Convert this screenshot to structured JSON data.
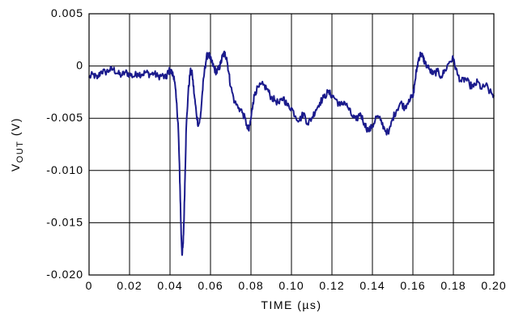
{
  "chart_data": {
    "type": "line",
    "xlabel": "TIME (µs)",
    "ylabel": {
      "main": "V",
      "sub": "OUT",
      "unit": " (V)"
    },
    "xlim": [
      0,
      0.2
    ],
    "ylim": [
      -0.02,
      0.005
    ],
    "x_ticks": [
      {
        "value": 0,
        "label": "0"
      },
      {
        "value": 0.02,
        "label": "0.02"
      },
      {
        "value": 0.04,
        "label": "0.04"
      },
      {
        "value": 0.06,
        "label": "0.06"
      },
      {
        "value": 0.08,
        "label": "0.08"
      },
      {
        "value": 0.1,
        "label": "0.10"
      },
      {
        "value": 0.12,
        "label": "0.12"
      },
      {
        "value": 0.14,
        "label": "0.14"
      },
      {
        "value": 0.16,
        "label": "0.16"
      },
      {
        "value": 0.18,
        "label": "0.18"
      },
      {
        "value": 0.2,
        "label": "0.20"
      }
    ],
    "y_ticks": [
      {
        "value": 0.005,
        "label": "0.005"
      },
      {
        "value": 0,
        "label": "0"
      },
      {
        "value": -0.005,
        "label": "-0.005"
      },
      {
        "value": -0.01,
        "label": "-0.010"
      },
      {
        "value": -0.015,
        "label": "-0.015"
      },
      {
        "value": -0.02,
        "label": "-0.020"
      }
    ],
    "grid": true,
    "line_color": "#1a1a8c",
    "series": [
      {
        "points": [
          [
            0.0,
            -0.0011
          ],
          [
            0.002,
            -0.0008
          ],
          [
            0.004,
            -0.0012
          ],
          [
            0.006,
            -0.0005
          ],
          [
            0.008,
            -0.0006
          ],
          [
            0.01,
            -0.0004
          ],
          [
            0.012,
            -0.0003
          ],
          [
            0.014,
            -0.0007
          ],
          [
            0.016,
            -0.0009
          ],
          [
            0.018,
            -0.0006
          ],
          [
            0.02,
            -0.0008
          ],
          [
            0.022,
            -0.001
          ],
          [
            0.024,
            -0.0007
          ],
          [
            0.026,
            -0.0008
          ],
          [
            0.028,
            -0.0006
          ],
          [
            0.03,
            -0.0008
          ],
          [
            0.032,
            -0.0007
          ],
          [
            0.034,
            -0.001
          ],
          [
            0.036,
            -0.0009
          ],
          [
            0.038,
            -0.0012
          ],
          [
            0.039,
            -0.0006
          ],
          [
            0.04,
            -0.0004
          ],
          [
            0.041,
            -0.0007
          ],
          [
            0.042,
            -0.001
          ],
          [
            0.043,
            -0.003
          ],
          [
            0.044,
            -0.0055
          ],
          [
            0.0445,
            -0.0085
          ],
          [
            0.045,
            -0.012
          ],
          [
            0.0455,
            -0.016
          ],
          [
            0.046,
            -0.0181
          ],
          [
            0.0465,
            -0.017
          ],
          [
            0.047,
            -0.014
          ],
          [
            0.0475,
            -0.01
          ],
          [
            0.048,
            -0.006
          ],
          [
            0.049,
            -0.0025
          ],
          [
            0.05,
            -0.0005
          ],
          [
            0.051,
            -0.0008
          ],
          [
            0.052,
            -0.0028
          ],
          [
            0.053,
            -0.0045
          ],
          [
            0.054,
            -0.0057
          ],
          [
            0.055,
            -0.005
          ],
          [
            0.056,
            -0.0025
          ],
          [
            0.057,
            -0.0005
          ],
          [
            0.058,
            0.0008
          ],
          [
            0.059,
            0.0012
          ],
          [
            0.06,
            0.0006
          ],
          [
            0.061,
            0.0002
          ],
          [
            0.062,
            -0.0003
          ],
          [
            0.063,
            -0.0006
          ],
          [
            0.064,
            -0.0003
          ],
          [
            0.065,
            0.0002
          ],
          [
            0.066,
            0.001
          ],
          [
            0.067,
            0.0012
          ],
          [
            0.068,
            0.0008
          ],
          [
            0.069,
            -0.0006
          ],
          [
            0.07,
            -0.002
          ],
          [
            0.072,
            -0.0035
          ],
          [
            0.074,
            -0.004
          ],
          [
            0.076,
            -0.0045
          ],
          [
            0.078,
            -0.0057
          ],
          [
            0.079,
            -0.0062
          ],
          [
            0.08,
            -0.005
          ],
          [
            0.081,
            -0.0035
          ],
          [
            0.082,
            -0.0025
          ],
          [
            0.084,
            -0.002
          ],
          [
            0.086,
            -0.0018
          ],
          [
            0.088,
            -0.0022
          ],
          [
            0.09,
            -0.003
          ],
          [
            0.092,
            -0.0033
          ],
          [
            0.094,
            -0.0036
          ],
          [
            0.096,
            -0.003
          ],
          [
            0.098,
            -0.0038
          ],
          [
            0.1,
            -0.004
          ],
          [
            0.102,
            -0.0048
          ],
          [
            0.104,
            -0.0052
          ],
          [
            0.106,
            -0.0045
          ],
          [
            0.108,
            -0.0055
          ],
          [
            0.11,
            -0.005
          ],
          [
            0.112,
            -0.0042
          ],
          [
            0.114,
            -0.0035
          ],
          [
            0.116,
            -0.003
          ],
          [
            0.118,
            -0.0025
          ],
          [
            0.12,
            -0.0028
          ],
          [
            0.122,
            -0.0032
          ],
          [
            0.124,
            -0.0038
          ],
          [
            0.126,
            -0.0034
          ],
          [
            0.128,
            -0.004
          ],
          [
            0.13,
            -0.0048
          ],
          [
            0.132,
            -0.0052
          ],
          [
            0.134,
            -0.0045
          ],
          [
            0.136,
            -0.0055
          ],
          [
            0.138,
            -0.0062
          ],
          [
            0.14,
            -0.0058
          ],
          [
            0.142,
            -0.0048
          ],
          [
            0.144,
            -0.0052
          ],
          [
            0.146,
            -0.006
          ],
          [
            0.148,
            -0.0065
          ],
          [
            0.15,
            -0.005
          ],
          [
            0.152,
            -0.0042
          ],
          [
            0.154,
            -0.0035
          ],
          [
            0.156,
            -0.004
          ],
          [
            0.158,
            -0.0032
          ],
          [
            0.16,
            -0.003
          ],
          [
            0.161,
            -0.0015
          ],
          [
            0.162,
            -0.0002
          ],
          [
            0.163,
            0.0008
          ],
          [
            0.164,
            0.0012
          ],
          [
            0.165,
            0.0008
          ],
          [
            0.166,
            0.0003
          ],
          [
            0.168,
            -0.0003
          ],
          [
            0.17,
            -0.0008
          ],
          [
            0.172,
            -0.0005
          ],
          [
            0.174,
            -0.001
          ],
          [
            0.176,
            -0.0004
          ],
          [
            0.178,
            0.0004
          ],
          [
            0.18,
            0.0007
          ],
          [
            0.182,
            -0.0008
          ],
          [
            0.184,
            -0.0015
          ],
          [
            0.186,
            -0.0012
          ],
          [
            0.188,
            -0.0018
          ],
          [
            0.19,
            -0.002
          ],
          [
            0.192,
            -0.0015
          ],
          [
            0.194,
            -0.0022
          ],
          [
            0.196,
            -0.0018
          ],
          [
            0.198,
            -0.0025
          ],
          [
            0.2,
            -0.0028
          ]
        ]
      }
    ]
  }
}
